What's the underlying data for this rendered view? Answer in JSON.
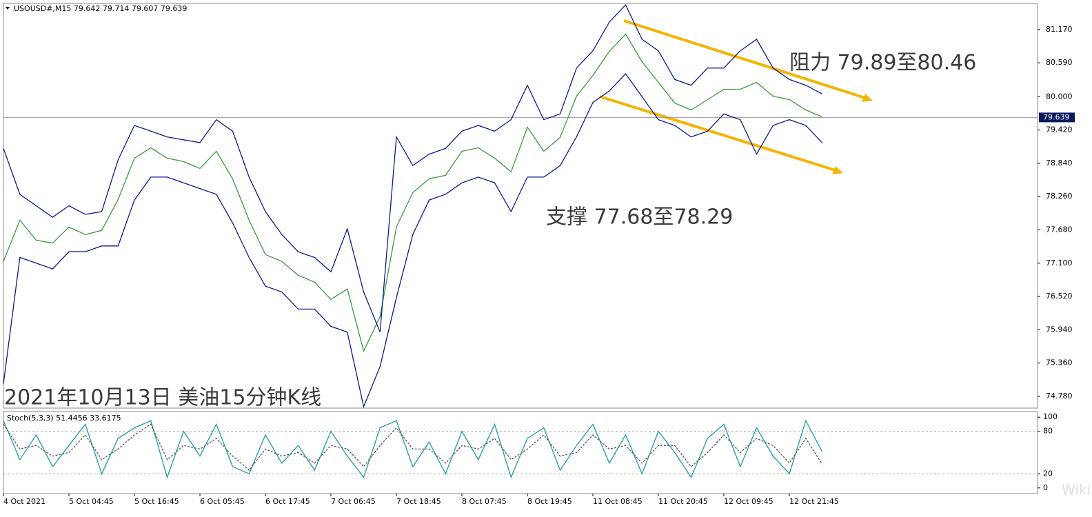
{
  "chart_data": [
    {
      "type": "bollinger",
      "header": "USOUSD#,M15  79.642 79.714 79.607 79.639",
      "title": "2021年10月13日 美油15分钟K线",
      "annotations": [
        "阻力 79.89至80.46",
        "支撑 77.68至78.29"
      ],
      "watermark": "WikiFX",
      "categories": [
        "4 Oct 2021",
        null,
        null,
        null,
        "5 Oct 04:45",
        null,
        null,
        null,
        "5 Oct 16:45",
        null,
        null,
        null,
        "6 Oct 05:45",
        null,
        null,
        null,
        "6 Oct 17:45",
        null,
        null,
        null,
        "7 Oct 06:45",
        null,
        null,
        null,
        "7 Oct 18:45",
        null,
        null,
        null,
        "8 Oct 07:45",
        null,
        null,
        null,
        "8 Oct 19:45",
        null,
        null,
        null,
        "11 Oct 08:45",
        null,
        null,
        null,
        "11 Oct 20:45",
        null,
        null,
        null,
        "12 Oct 09:45",
        null,
        null,
        null,
        "12 Oct 21:45",
        null,
        null
      ],
      "series": [
        {
          "name": "price",
          "color": "#3a9a3a",
          "values": [
            77.13,
            77.85,
            77.5,
            77.45,
            77.73,
            77.6,
            77.67,
            78.21,
            78.93,
            79.11,
            78.93,
            78.87,
            78.75,
            79.05,
            78.57,
            77.85,
            77.25,
            77.13,
            76.89,
            76.77,
            76.47,
            76.65,
            75.57,
            76.17,
            77.73,
            78.33,
            78.57,
            78.63,
            79.05,
            79.11,
            78.93,
            78.69,
            79.47,
            79.05,
            79.29,
            80.01,
            80.37,
            80.79,
            81.09,
            80.61,
            80.25,
            79.89,
            79.77,
            79.95,
            80.13,
            80.13,
            80.25,
            80.01,
            79.95,
            79.77,
            79.65
          ]
        },
        {
          "name": "upper band",
          "color": "#0a1a8c",
          "values": [
            79.1,
            78.3,
            78.1,
            77.9,
            78.1,
            77.95,
            78.0,
            78.9,
            79.5,
            79.4,
            79.3,
            79.25,
            79.2,
            79.6,
            79.4,
            78.6,
            78.0,
            77.6,
            77.3,
            77.2,
            76.95,
            77.7,
            76.6,
            75.9,
            79.3,
            78.8,
            79.0,
            79.1,
            79.4,
            79.5,
            79.4,
            79.6,
            80.2,
            79.6,
            79.7,
            80.5,
            80.8,
            81.3,
            81.6,
            81.0,
            80.8,
            80.3,
            80.2,
            80.5,
            80.5,
            80.8,
            81.0,
            80.5,
            80.3,
            80.2,
            80.05
          ]
        },
        {
          "name": "lower band",
          "color": "#0a1a8c",
          "values": [
            75.0,
            77.2,
            77.1,
            77.0,
            77.3,
            77.3,
            77.4,
            77.4,
            78.2,
            78.6,
            78.6,
            78.5,
            78.4,
            78.3,
            77.8,
            77.2,
            76.7,
            76.6,
            76.3,
            76.3,
            76.0,
            75.9,
            74.6,
            75.3,
            76.5,
            77.6,
            78.2,
            78.3,
            78.5,
            78.6,
            78.5,
            78.0,
            78.6,
            78.6,
            78.8,
            79.3,
            79.9,
            80.1,
            80.4,
            80.0,
            79.6,
            79.5,
            79.3,
            79.4,
            79.7,
            79.6,
            79.0,
            79.5,
            79.6,
            79.5,
            79.2
          ]
        }
      ],
      "last_price": 79.639,
      "last_color": "#0b1a5a",
      "ylim": [
        74.576,
        81.625
      ],
      "yticks": [
        {
          "value": 81.17,
          "label": "81.170"
        },
        {
          "value": 80.59,
          "label": "80.590"
        },
        {
          "value": 80.0,
          "label": "80.000"
        },
        {
          "value": 79.42,
          "label": "79.420"
        },
        {
          "value": 78.84,
          "label": "78.840"
        },
        {
          "value": 78.26,
          "label": "78.260"
        },
        {
          "value": 77.68,
          "label": "77.680"
        },
        {
          "value": 77.1,
          "label": "77.100"
        },
        {
          "value": 76.52,
          "label": "76.520"
        },
        {
          "value": 75.94,
          "label": "75.940"
        },
        {
          "value": 75.36,
          "label": "75.360"
        },
        {
          "value": 74.78,
          "label": "74.780"
        }
      ]
    },
    {
      "type": "stochastic",
      "title": "Stoch(5,3,3) 51.4456 33.6175",
      "series": [
        {
          "name": "main",
          "color": "#1e9aa0",
          "values": [
            95,
            40,
            75,
            30,
            60,
            90,
            20,
            70,
            85,
            95,
            15,
            80,
            45,
            90,
            30,
            20,
            75,
            35,
            60,
            25,
            80,
            45,
            15,
            85,
            95,
            30,
            65,
            20,
            80,
            40,
            90,
            15,
            70,
            85,
            25,
            60,
            90,
            35,
            75,
            20,
            80,
            50,
            15,
            70,
            90,
            30,
            85,
            45,
            20,
            95,
            51.4456
          ]
        },
        {
          "name": "signal",
          "color": "#555555",
          "values": [
            90,
            55,
            60,
            45,
            50,
            75,
            40,
            55,
            75,
            90,
            40,
            60,
            55,
            70,
            45,
            25,
            55,
            45,
            50,
            35,
            60,
            55,
            30,
            60,
            85,
            55,
            55,
            35,
            60,
            55,
            70,
            40,
            55,
            75,
            45,
            50,
            75,
            55,
            60,
            35,
            60,
            60,
            30,
            50,
            75,
            50,
            70,
            60,
            35,
            70,
            33.6175
          ]
        }
      ],
      "ylim": [
        -8,
        108
      ],
      "yticks": [
        100,
        80,
        20,
        0
      ],
      "levels": [
        80,
        20
      ]
    }
  ]
}
